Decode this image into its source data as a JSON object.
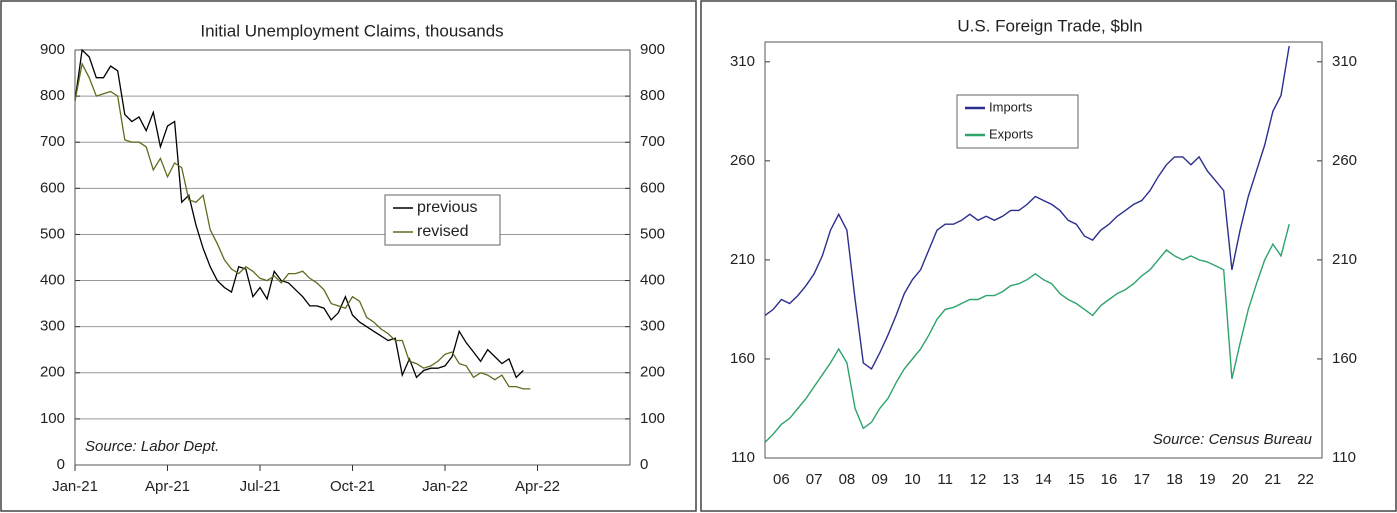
{
  "chart_data": [
    {
      "type": "line",
      "title": "Initial Unemployment Claims, thousands",
      "categories": [
        "Jan-21",
        null,
        null,
        null,
        null,
        null,
        null,
        null,
        null,
        null,
        null,
        null,
        null,
        "Apr-21",
        null,
        null,
        null,
        null,
        null,
        null,
        null,
        null,
        null,
        null,
        null,
        null,
        "Jul-21",
        null,
        null,
        null,
        null,
        null,
        null,
        null,
        null,
        null,
        null,
        null,
        null,
        "Oct-21",
        null,
        null,
        null,
        null,
        null,
        null,
        null,
        null,
        null,
        null,
        null,
        null,
        "Jan-22",
        null,
        null,
        null,
        null,
        null,
        null,
        null,
        null,
        null,
        null,
        null,
        null,
        "Apr-22",
        null,
        null,
        null,
        null,
        null,
        null,
        null,
        null,
        null,
        null,
        null,
        null,
        null
      ],
      "series": [
        {
          "name": "previous",
          "color": "#000000",
          "values": [
            790,
            900,
            885,
            840,
            840,
            865,
            855,
            760,
            745,
            755,
            725,
            765,
            690,
            735,
            745,
            570,
            585,
            520,
            470,
            430,
            400,
            385,
            375,
            430,
            425,
            365,
            385,
            360,
            420,
            400,
            395,
            380,
            365,
            345,
            345,
            340,
            315,
            330,
            365,
            325,
            310,
            300,
            290,
            280,
            270,
            275,
            195,
            230,
            190,
            205,
            210,
            210,
            215,
            235,
            290,
            265,
            245,
            225,
            250,
            235,
            220,
            230,
            190,
            205,
            null,
            null,
            null,
            null,
            null,
            null,
            null,
            null,
            null,
            null,
            null,
            null,
            null,
            null,
            null
          ]
        },
        {
          "name": "revised",
          "color": "#5a6e1e",
          "values": [
            790,
            870,
            840,
            800,
            805,
            810,
            800,
            705,
            700,
            700,
            690,
            640,
            665,
            625,
            655,
            645,
            575,
            570,
            585,
            510,
            480,
            445,
            425,
            415,
            430,
            420,
            405,
            400,
            410,
            395,
            415,
            415,
            420,
            405,
            395,
            380,
            350,
            345,
            340,
            365,
            355,
            320,
            310,
            295,
            285,
            270,
            270,
            225,
            220,
            210,
            215,
            225,
            240,
            245,
            220,
            215,
            190,
            200,
            195,
            185,
            195,
            170,
            170,
            165,
            165,
            null,
            null,
            null,
            null,
            null,
            null,
            null,
            null,
            null,
            null,
            null,
            null,
            null,
            null
          ]
        }
      ],
      "ylim": [
        0,
        900
      ],
      "yticks": [
        0,
        100,
        200,
        300,
        400,
        500,
        600,
        700,
        800,
        900
      ],
      "grid": true,
      "annotation": "Source: Labor Dept."
    },
    {
      "type": "line",
      "title": "U.S. Foreign Trade, $bln",
      "x": [
        2006,
        2006.25,
        2006.5,
        2006.75,
        2007,
        2007.25,
        2007.5,
        2007.75,
        2008,
        2008.25,
        2008.5,
        2008.75,
        2009,
        2009.25,
        2009.5,
        2009.75,
        2010,
        2010.25,
        2010.5,
        2010.75,
        2011,
        2011.25,
        2011.5,
        2011.75,
        2012,
        2012.25,
        2012.5,
        2012.75,
        2013,
        2013.25,
        2013.5,
        2013.75,
        2014,
        2014.25,
        2014.5,
        2014.75,
        2015,
        2015.25,
        2015.5,
        2015.75,
        2016,
        2016.25,
        2016.5,
        2016.75,
        2017,
        2017.25,
        2017.5,
        2017.75,
        2018,
        2018.25,
        2018.5,
        2018.75,
        2019,
        2019.25,
        2019.5,
        2019.75,
        2020,
        2020.25,
        2020.5,
        2020.75,
        2021,
        2021.25,
        2021.5,
        2021.75,
        2022
      ],
      "series": [
        {
          "name": "Imports",
          "color": "#2b2f8f",
          "values": [
            182,
            185,
            190,
            188,
            192,
            197,
            203,
            212,
            225,
            233,
            225,
            190,
            158,
            155,
            163,
            172,
            182,
            193,
            200,
            205,
            215,
            225,
            228,
            228,
            230,
            233,
            230,
            232,
            230,
            232,
            235,
            235,
            238,
            242,
            240,
            238,
            235,
            230,
            228,
            222,
            220,
            225,
            228,
            232,
            235,
            238,
            240,
            245,
            252,
            258,
            262,
            262,
            258,
            262,
            255,
            250,
            245,
            205,
            225,
            242,
            255,
            268,
            285,
            293,
            318
          ]
        },
        {
          "name": "Exports",
          "color": "#2ea36b",
          "values": [
            118,
            122,
            127,
            130,
            135,
            140,
            146,
            152,
            158,
            165,
            158,
            135,
            125,
            128,
            135,
            140,
            148,
            155,
            160,
            165,
            172,
            180,
            185,
            186,
            188,
            190,
            190,
            192,
            192,
            194,
            197,
            198,
            200,
            203,
            200,
            198,
            193,
            190,
            188,
            185,
            182,
            187,
            190,
            193,
            195,
            198,
            202,
            205,
            210,
            215,
            212,
            210,
            212,
            210,
            209,
            207,
            205,
            150,
            168,
            185,
            198,
            210,
            218,
            212,
            228
          ]
        }
      ],
      "xlim": [
        2006,
        2023
      ],
      "xticks": [
        {
          "value": 2006.5,
          "label": "06"
        },
        {
          "value": 2007.5,
          "label": "07"
        },
        {
          "value": 2008.5,
          "label": "08"
        },
        {
          "value": 2009.5,
          "label": "09"
        },
        {
          "value": 2010.5,
          "label": "10"
        },
        {
          "value": 2011.5,
          "label": "11"
        },
        {
          "value": 2012.5,
          "label": "12"
        },
        {
          "value": 2013.5,
          "label": "13"
        },
        {
          "value": 2014.5,
          "label": "14"
        },
        {
          "value": 2015.5,
          "label": "15"
        },
        {
          "value": 2016.5,
          "label": "16"
        },
        {
          "value": 2017.5,
          "label": "17"
        },
        {
          "value": 2018.5,
          "label": "18"
        },
        {
          "value": 2019.5,
          "label": "19"
        },
        {
          "value": 2020.5,
          "label": "20"
        },
        {
          "value": 2021.5,
          "label": "21"
        },
        {
          "value": 2022.5,
          "label": "22"
        }
      ],
      "ylim": [
        110,
        320
      ],
      "yticks": [
        110,
        160,
        210,
        260,
        310
      ],
      "grid": false,
      "annotation": "Source: Census Bureau"
    }
  ]
}
